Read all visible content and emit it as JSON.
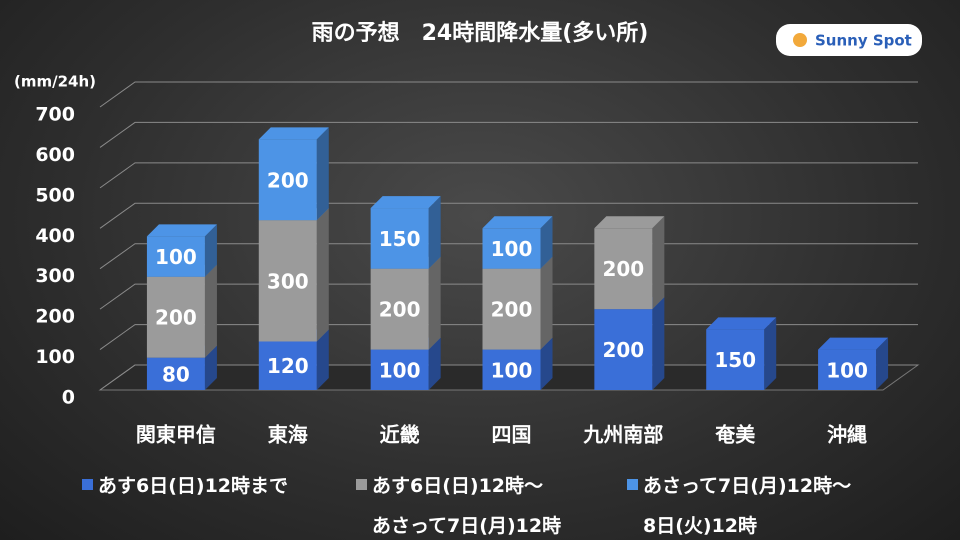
{
  "chart_data": {
    "type": "bar3d_stacked",
    "title": "雨の予想　24時間降水量(多い所)",
    "logo": "Sunny Spot",
    "y_axis_label": "(mm/24h)",
    "categories": [
      "関東甲信",
      "東海",
      "近畿",
      "四国",
      "九州南部",
      "奄美",
      "沖縄"
    ],
    "series": [
      {
        "name": "あす6日(日)12時まで",
        "color": "#3a6fd8",
        "values": [
          80,
          120,
          100,
          100,
          200,
          150,
          100
        ]
      },
      {
        "name": "あす6日(日)12時～\nあさって7日(月)12時",
        "color": "#9b9b9b",
        "values": [
          200,
          300,
          200,
          200,
          200,
          null,
          null
        ]
      },
      {
        "name": "あさって7日(月)12時～\n8日(火)12時",
        "color": "#4d94e6",
        "values": [
          100,
          200,
          150,
          100,
          null,
          null,
          null
        ]
      }
    ],
    "ylim": [
      0,
      700
    ],
    "yticks": [
      0,
      100,
      200,
      300,
      400,
      500,
      600,
      700
    ],
    "grid": true
  }
}
